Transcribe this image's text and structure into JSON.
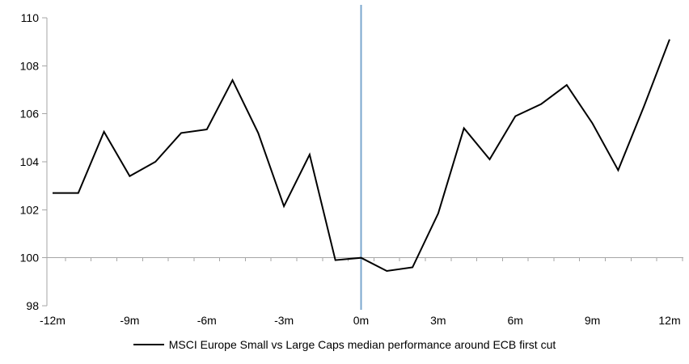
{
  "chart_data": {
    "type": "line",
    "title": "",
    "x_months": [
      -12,
      -11,
      -10,
      -9,
      -8,
      -7,
      -6,
      -5,
      -4,
      -3,
      -2,
      -1,
      0,
      1,
      2,
      3,
      4,
      5,
      6,
      7,
      8,
      9,
      10,
      11,
      12
    ],
    "series": [
      {
        "name": "MSCI Europe Small vs Large Caps median performance around ECB first cut",
        "color": "#000000",
        "values": [
          102.7,
          102.7,
          105.25,
          103.4,
          104.0,
          105.2,
          105.35,
          107.4,
          105.2,
          102.15,
          104.3,
          99.9,
          100.0,
          99.45,
          99.6,
          101.85,
          105.4,
          104.1,
          105.9,
          106.4,
          107.2,
          105.6,
          103.65,
          106.3,
          109.1
        ]
      }
    ],
    "xlim": [
      -12,
      12
    ],
    "ylim": [
      98,
      110
    ],
    "y_ticks": [
      98,
      100,
      102,
      104,
      106,
      108,
      110
    ],
    "x_tick_months": [
      -12,
      -9,
      -6,
      -3,
      0,
      3,
      6,
      9,
      12
    ],
    "x_tick_labels": [
      "-12m",
      "-9m",
      "-6m",
      "-3m",
      "0m",
      "3m",
      "6m",
      "9m",
      "12m"
    ],
    "baseline_value": 100,
    "event_line_x": 0,
    "grid_on": false,
    "legend_position": "bottom",
    "colors": {
      "line": "#000000",
      "event_line": "#7BA7CE",
      "axis": "#A6A6A6"
    }
  },
  "legend": {
    "label": "MSCI Europe Small vs Large Caps median performance around ECB first cut"
  }
}
